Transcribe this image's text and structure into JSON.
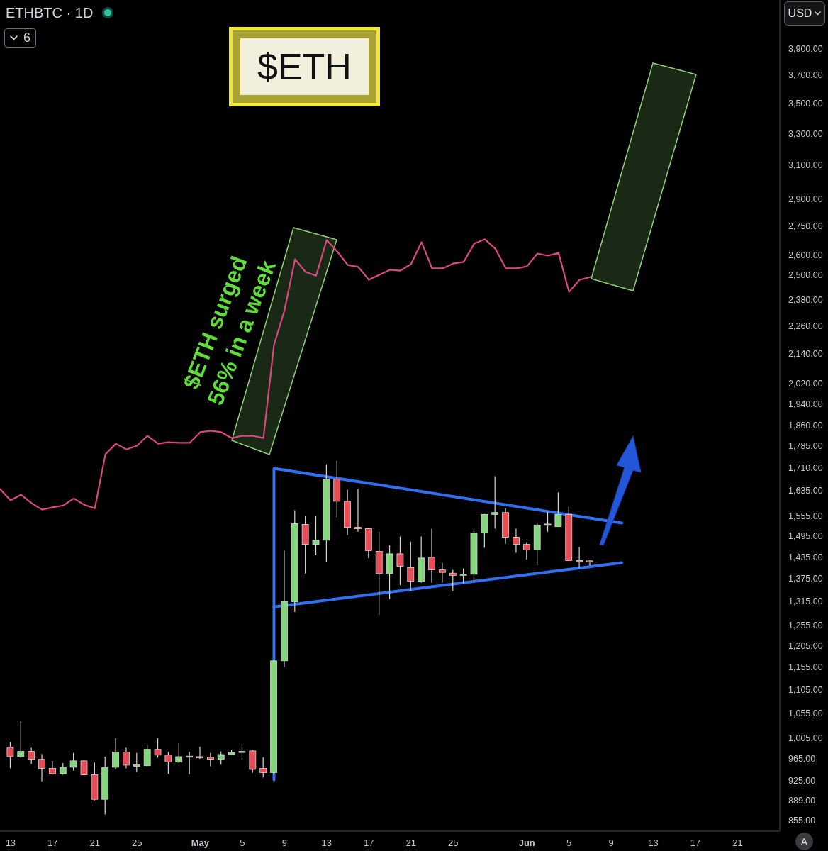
{
  "chart_data": {
    "type": "candlestick",
    "title": "$ETH",
    "subtitle": "ETHBTC · 1D",
    "ylabel": "USD",
    "annotations": [
      "$ETH surged\n56% in a week",
      "6",
      "A"
    ],
    "x": [
      "--04-13",
      "--04-14",
      "--04-15",
      "--04-16",
      "--04-17",
      "--04-18",
      "--04-19",
      "--04-20",
      "--04-21",
      "--04-22",
      "--04-23",
      "--04-24",
      "--04-25",
      "--04-26",
      "--04-27",
      "--04-28",
      "--04-29",
      "--04-30",
      "--05-01",
      "--05-02",
      "--05-03",
      "--05-04",
      "--05-05",
      "--05-06",
      "--05-07",
      "--05-08",
      "--05-09",
      "--05-10",
      "--05-11",
      "--05-12",
      "--05-13",
      "--05-14",
      "--05-15",
      "--05-16",
      "--05-17",
      "--05-18",
      "--05-19",
      "--05-20",
      "--05-21",
      "--05-22",
      "--05-23",
      "--05-24",
      "--05-25",
      "--05-26",
      "--05-27",
      "--05-28",
      "--05-29",
      "--05-30",
      "--05-31",
      "--06-01",
      "--06-02",
      "--06-03",
      "--06-04",
      "--06-05",
      "--06-06",
      "--06-07"
    ],
    "ohlc": [
      [
        987,
        997,
        947,
        969
      ],
      [
        969,
        1039,
        967,
        979
      ],
      [
        979,
        986,
        955,
        964
      ],
      [
        964,
        974,
        923,
        947
      ],
      [
        947,
        961,
        936,
        937
      ],
      [
        937,
        957,
        935,
        949
      ],
      [
        949,
        976,
        943,
        961
      ],
      [
        961,
        962,
        934,
        935
      ],
      [
        935,
        958,
        889,
        891
      ],
      [
        891,
        969,
        865,
        949
      ],
      [
        949,
        1005,
        945,
        978
      ],
      [
        978,
        986,
        947,
        953
      ],
      [
        951,
        976,
        940,
        954
      ],
      [
        952,
        992,
        951,
        983
      ],
      [
        983,
        1005,
        967,
        972
      ],
      [
        972,
        978,
        937,
        959
      ],
      [
        959,
        995,
        957,
        969
      ],
      [
        968,
        978,
        936,
        970
      ],
      [
        969,
        988,
        965,
        968
      ],
      [
        968,
        976,
        951,
        964
      ],
      [
        964,
        979,
        954,
        973
      ],
      [
        973,
        982,
        972,
        977
      ],
      [
        977,
        993,
        964,
        979
      ],
      [
        980,
        982,
        939,
        945
      ],
      [
        947,
        968,
        930,
        939
      ],
      [
        939,
        1172,
        935,
        1170
      ],
      [
        1170,
        1453,
        1156,
        1314
      ],
      [
        1314,
        1573,
        1288,
        1532
      ],
      [
        1530,
        1555,
        1389,
        1471
      ],
      [
        1471,
        1555,
        1440,
        1483
      ],
      [
        1483,
        1722,
        1422,
        1672
      ],
      [
        1672,
        1734,
        1551,
        1601
      ],
      [
        1601,
        1638,
        1498,
        1521
      ],
      [
        1521,
        1640,
        1508,
        1517
      ],
      [
        1517,
        1519,
        1432,
        1453
      ],
      [
        1451,
        1508,
        1281,
        1389
      ],
      [
        1389,
        1468,
        1321,
        1444
      ],
      [
        1444,
        1494,
        1358,
        1409
      ],
      [
        1405,
        1479,
        1343,
        1368
      ],
      [
        1368,
        1494,
        1364,
        1432
      ],
      [
        1434,
        1517,
        1364,
        1399
      ],
      [
        1399,
        1418,
        1364,
        1392
      ],
      [
        1390,
        1399,
        1343,
        1384
      ],
      [
        1384,
        1403,
        1362,
        1387
      ],
      [
        1387,
        1517,
        1368,
        1504
      ],
      [
        1504,
        1562,
        1461,
        1560
      ],
      [
        1560,
        1682,
        1517,
        1566
      ],
      [
        1566,
        1579,
        1473,
        1492
      ],
      [
        1492,
        1517,
        1447,
        1471
      ],
      [
        1471,
        1477,
        1428,
        1455
      ],
      [
        1455,
        1536,
        1411,
        1527
      ],
      [
        1527,
        1568,
        1508,
        1531
      ],
      [
        1523,
        1629,
        1523,
        1560
      ],
      [
        1560,
        1584,
        1424,
        1425
      ],
      [
        1425,
        1463,
        1403,
        1422
      ],
      [
        1424,
        1425,
        1411,
        1423
      ]
    ],
    "colors": [
      "#e84d57",
      "#83d67b",
      "#e84d57",
      "#e84d57",
      "#e84d57",
      "#83d67b",
      "#83d67b",
      "#e84d57",
      "#e84d57",
      "#83d67b",
      "#83d67b",
      "#e84d57",
      "#83d67b",
      "#83d67b",
      "#e84d57",
      "#e84d57",
      "#83d67b",
      "#83d67b",
      "#e84d57",
      "#e84d57",
      "#83d67b",
      "#83d67b",
      "#83d67b",
      "#e84d57",
      "#e84d57",
      "#83d67b",
      "#83d67b",
      "#83d67b",
      "#e84d57",
      "#83d67b",
      "#83d67b",
      "#e84d57",
      "#e84d57",
      "#e84d57",
      "#e84d57",
      "#e84d57",
      "#83d67b",
      "#e84d57",
      "#e84d57",
      "#83d67b",
      "#e84d57",
      "#e84d57",
      "#e84d57",
      "#83d67b",
      "#83d67b",
      "#83d67b",
      "#83d67b",
      "#e84d57",
      "#e84d57",
      "#e84d57",
      "#83d67b",
      "#83d67b",
      "#83d67b",
      "#e84d57",
      "#e84d57",
      "#e84d57"
    ],
    "series": [
      {
        "type": "line",
        "color": "#d9487f",
        "x": [
          "--04-12",
          "--04-13",
          "--04-14",
          "--04-15",
          "--04-16",
          "--04-17",
          "--04-18",
          "--04-19",
          "--04-20",
          "--04-21",
          "--04-22",
          "--04-23",
          "--04-24",
          "--04-25",
          "--04-26",
          "--04-27",
          "--04-28",
          "--04-29",
          "--04-30",
          "--05-01",
          "--05-02",
          "--05-03",
          "--05-04",
          "--05-05",
          "--05-06",
          "--05-07",
          "--05-08",
          "--05-09",
          "--05-10",
          "--05-11",
          "--05-12",
          "--05-13",
          "--05-14",
          "--05-15",
          "--05-16",
          "--05-17",
          "--05-18",
          "--05-19",
          "--05-20",
          "--05-21",
          "--05-22",
          "--05-23",
          "--05-24",
          "--05-25",
          "--05-26",
          "--05-27",
          "--05-28",
          "--05-29",
          "--05-30",
          "--05-31",
          "--06-01",
          "--06-02",
          "--06-03",
          "--06-04",
          "--06-05",
          "--06-06",
          "--06-07"
        ],
        "values": [
          1640,
          1604,
          1622,
          1595,
          1575,
          1582,
          1588,
          1610,
          1590,
          1579,
          1756,
          1793,
          1773,
          1786,
          1821,
          1793,
          1798,
          1796,
          1796,
          1834,
          1839,
          1834,
          1813,
          1821,
          1821,
          1813,
          2177,
          2331,
          2577,
          2513,
          2495,
          2676,
          2617,
          2548,
          2538,
          2475,
          2499,
          2524,
          2520,
          2552,
          2665,
          2531,
          2531,
          2555,
          2563,
          2657,
          2680,
          2631,
          2531,
          2531,
          2541,
          2606,
          2595,
          2609,
          2417,
          2475,
          2488
        ]
      },
      {
        "type": "line",
        "color": "#3170f0",
        "x": [
          "--05-08",
          "--05-08",
          "--06-10"
        ],
        "values": [
          926,
          1708,
          1534
        ]
      },
      {
        "type": "line",
        "color": "#3170f0",
        "x": [
          "--05-08",
          "--06-10"
        ],
        "values": [
          1301,
          1419
        ]
      }
    ],
    "xlim": [
      "--04-12",
      "--06-25"
    ],
    "xticks": [
      {
        "value": "--04-13",
        "label": "13"
      },
      {
        "value": "--04-17",
        "label": "17"
      },
      {
        "value": "--04-21",
        "label": "21"
      },
      {
        "value": "--04-25",
        "label": "25"
      },
      {
        "value": "--05-01",
        "label": "May"
      },
      {
        "value": "--05-05",
        "label": "5"
      },
      {
        "value": "--05-09",
        "label": "9"
      },
      {
        "value": "--05-13",
        "label": "13"
      },
      {
        "value": "--05-17",
        "label": "17"
      },
      {
        "value": "--05-21",
        "label": "21"
      },
      {
        "value": "--05-25",
        "label": "25"
      },
      {
        "value": "--06-01",
        "label": "Jun"
      },
      {
        "value": "--06-05",
        "label": "5"
      },
      {
        "value": "--06-09",
        "label": "9"
      },
      {
        "value": "--06-13",
        "label": "13"
      },
      {
        "value": "--06-17",
        "label": "17"
      },
      {
        "value": "--06-21",
        "label": "21"
      }
    ],
    "ylim": [
      837,
      4290
    ],
    "yticks": [
      {
        "value": 855,
        "label": "855.00"
      },
      {
        "value": 889,
        "label": "889.00"
      },
      {
        "value": 925,
        "label": "925.00"
      },
      {
        "value": 965,
        "label": "965.00"
      },
      {
        "value": 1005,
        "label": "1,005.00"
      },
      {
        "value": 1055,
        "label": "1,055.00"
      },
      {
        "value": 1105,
        "label": "1,105.00"
      },
      {
        "value": 1155,
        "label": "1,155.00"
      },
      {
        "value": 1205,
        "label": "1,205.00"
      },
      {
        "value": 1255,
        "label": "1,255.00"
      },
      {
        "value": 1315,
        "label": "1,315.00"
      },
      {
        "value": 1375,
        "label": "1,375.00"
      },
      {
        "value": 1435,
        "label": "1,435.00"
      },
      {
        "value": 1495,
        "label": "1,495.00"
      },
      {
        "value": 1555,
        "label": "1,555.00"
      },
      {
        "value": 1635,
        "label": "1,635.00"
      },
      {
        "value": 1710,
        "label": "1,710.00"
      },
      {
        "value": 1785,
        "label": "1,785.00"
      },
      {
        "value": 1860,
        "label": "1,860.00"
      },
      {
        "value": 1940,
        "label": "1,940.00"
      },
      {
        "value": 2020,
        "label": "2,020.00"
      },
      {
        "value": 2140,
        "label": "2,140.00"
      },
      {
        "value": 2260,
        "label": "2,260.00"
      },
      {
        "value": 2380,
        "label": "2,380.00"
      },
      {
        "value": 2500,
        "label": "2,500.00"
      },
      {
        "value": 2600,
        "label": "2,600.00"
      },
      {
        "value": 2750,
        "label": "2,750.00"
      },
      {
        "value": 2900,
        "label": "2,900.00"
      },
      {
        "value": 3100,
        "label": "3,100.00"
      },
      {
        "value": 3300,
        "label": "3,300.00"
      },
      {
        "value": 3500,
        "label": "3,500.00"
      },
      {
        "value": 3700,
        "label": "3,700.00"
      },
      {
        "value": 3900,
        "label": "3,900.00"
      }
    ],
    "log": true,
    "marker": "none"
  }
}
